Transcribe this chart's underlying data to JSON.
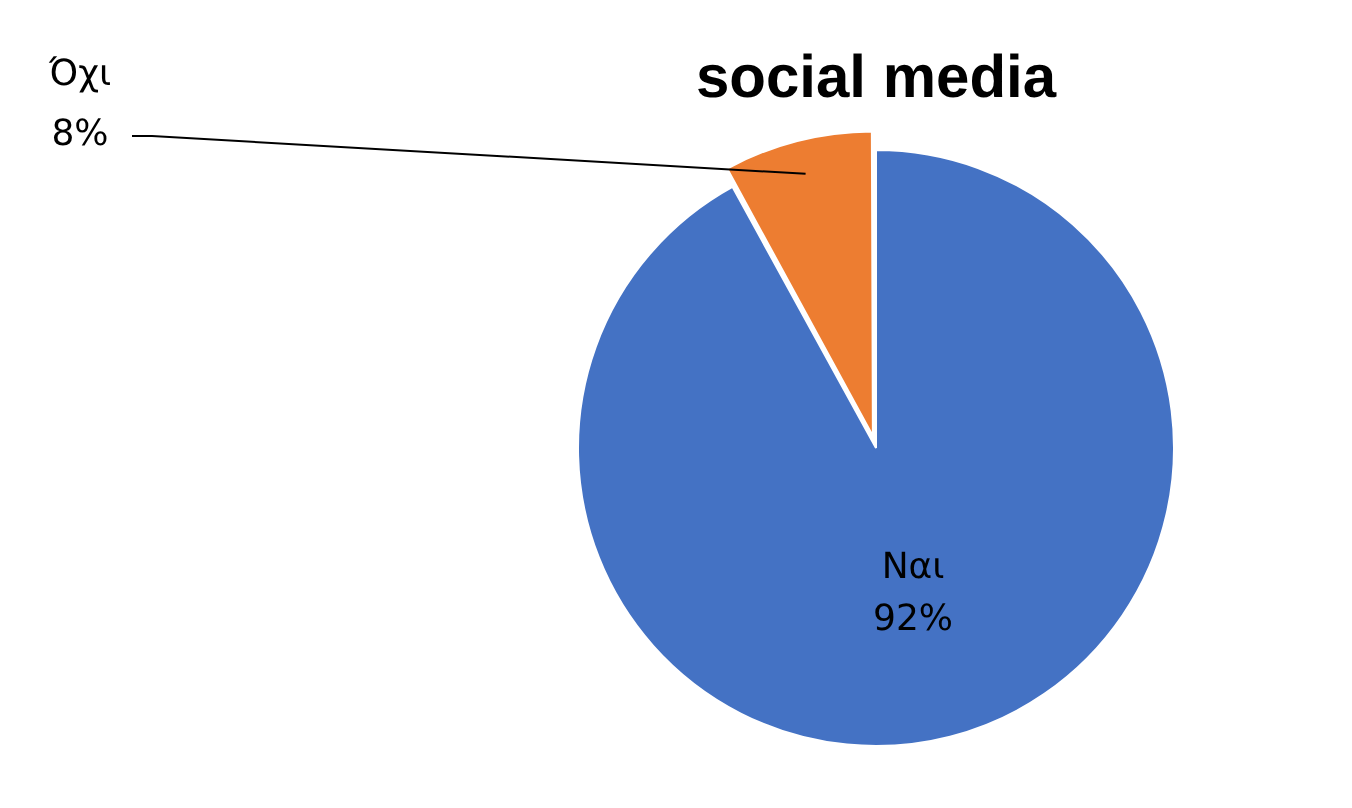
{
  "chart_data": {
    "type": "pie",
    "title": "social media",
    "categories": [
      "Ναι",
      "Όχι"
    ],
    "values": [
      92,
      8
    ],
    "value_labels": [
      "92%",
      "8%"
    ],
    "colors": [
      "#4472c4",
      "#ed7d31"
    ],
    "legend": false
  }
}
